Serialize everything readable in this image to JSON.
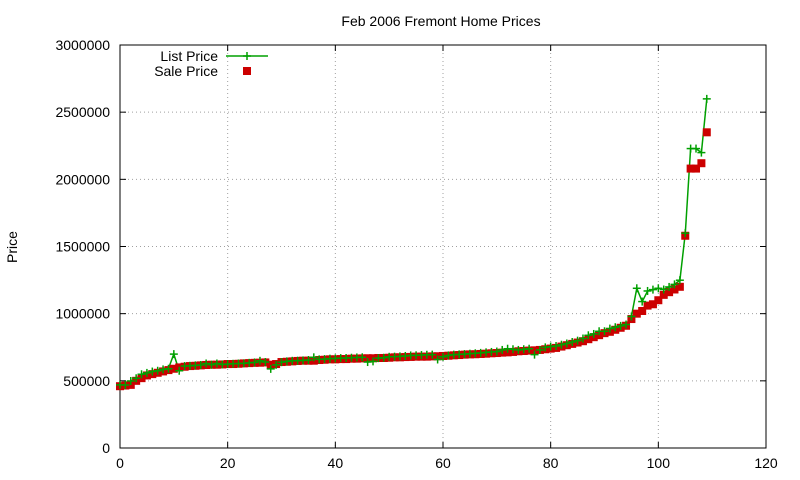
{
  "chart_data": {
    "type": "line",
    "title": "Feb 2006 Fremont Home Prices",
    "xlabel": "",
    "ylabel": "Price",
    "xlim": [
      0,
      120
    ],
    "ylim": [
      0,
      3000000
    ],
    "x_ticks": [
      0,
      20,
      40,
      60,
      80,
      100,
      120
    ],
    "y_ticks": [
      0,
      500000,
      1000000,
      1500000,
      2000000,
      2500000,
      3000000
    ],
    "grid": true,
    "legend_position": "top-left",
    "series": [
      {
        "name": "List Price",
        "style": "line-with-plus-markers",
        "color": "#00a000",
        "x": [
          0,
          1,
          2,
          3,
          4,
          5,
          6,
          7,
          8,
          9,
          10,
          11,
          12,
          13,
          14,
          15,
          16,
          17,
          18,
          19,
          20,
          21,
          22,
          23,
          24,
          25,
          26,
          27,
          28,
          29,
          30,
          31,
          32,
          33,
          34,
          35,
          36,
          37,
          38,
          39,
          40,
          41,
          42,
          43,
          44,
          45,
          46,
          47,
          48,
          49,
          50,
          51,
          52,
          53,
          54,
          55,
          56,
          57,
          58,
          59,
          60,
          61,
          62,
          63,
          64,
          65,
          66,
          67,
          68,
          69,
          70,
          71,
          72,
          73,
          74,
          75,
          76,
          77,
          78,
          79,
          80,
          81,
          82,
          83,
          84,
          85,
          86,
          87,
          88,
          89,
          90,
          91,
          92,
          93,
          94,
          95,
          96,
          97,
          98,
          99,
          100,
          101,
          102,
          103,
          104,
          105,
          106,
          107,
          108,
          109
        ],
        "values": [
          470000,
          469000,
          499000,
          519000,
          549000,
          559000,
          569000,
          575000,
          585000,
          590000,
          699000,
          575000,
          610000,
          612000,
          615000,
          618000,
          629000,
          620000,
          629000,
          622000,
          625000,
          627000,
          629000,
          630000,
          634000,
          637000,
          649000,
          640000,
          589000,
          619000,
          639000,
          645000,
          649000,
          650000,
          652000,
          655000,
          675000,
          660000,
          662000,
          665000,
          667000,
          669000,
          670000,
          672000,
          674000,
          675000,
          640000,
          645000,
          669000,
          672000,
          679000,
          680000,
          682000,
          685000,
          689000,
          690000,
          692000,
          694000,
          695000,
          659000,
          679000,
          689000,
          695000,
          697000,
          699000,
          702000,
          705000,
          708000,
          712000,
          715000,
          718000,
          730000,
          739000,
          735000,
          730000,
          735000,
          739000,
          695000,
          730000,
          749000,
          755000,
          759000,
          769000,
          778000,
          789000,
          799000,
          815000,
          839000,
          849000,
          869000,
          869000,
          889000,
          899000,
          909000,
          919000,
          979000,
          1189000,
          1090000,
          1169000,
          1179000,
          1189000,
          1180000,
          1199000,
          1218000,
          1249000,
          1599000,
          2229000,
          2229000,
          2199000,
          2599000
        ]
      },
      {
        "name": "Sale Price",
        "style": "square-markers",
        "color": "#cc0000",
        "x": [
          0,
          1,
          2,
          3,
          4,
          5,
          6,
          7,
          8,
          9,
          10,
          11,
          12,
          13,
          14,
          15,
          16,
          17,
          18,
          19,
          20,
          21,
          22,
          23,
          24,
          25,
          26,
          27,
          28,
          29,
          30,
          31,
          32,
          33,
          34,
          35,
          36,
          37,
          38,
          39,
          40,
          41,
          42,
          43,
          44,
          45,
          46,
          47,
          48,
          49,
          50,
          51,
          52,
          53,
          54,
          55,
          56,
          57,
          58,
          59,
          60,
          61,
          62,
          63,
          64,
          65,
          66,
          67,
          68,
          69,
          70,
          71,
          72,
          73,
          74,
          75,
          76,
          77,
          78,
          79,
          80,
          81,
          82,
          83,
          84,
          85,
          86,
          87,
          88,
          89,
          90,
          91,
          92,
          93,
          94,
          95,
          96,
          97,
          98,
          99,
          100,
          101,
          102,
          103,
          104,
          105,
          106,
          107,
          108,
          109
        ],
        "values": [
          460000,
          465000,
          470000,
          500000,
          520000,
          540000,
          550000,
          560000,
          570000,
          580000,
          590000,
          600000,
          605000,
          610000,
          612000,
          615000,
          618000,
          620000,
          620000,
          622000,
          625000,
          625000,
          627000,
          630000,
          632000,
          634000,
          635000,
          637000,
          620000,
          625000,
          640000,
          642000,
          645000,
          648000,
          650000,
          650000,
          650000,
          655000,
          657000,
          660000,
          660000,
          662000,
          662000,
          665000,
          665000,
          667000,
          668000,
          668000,
          670000,
          670000,
          672000,
          675000,
          675000,
          677000,
          678000,
          680000,
          680000,
          680000,
          682000,
          683000,
          685000,
          687000,
          690000,
          692000,
          695000,
          697000,
          698000,
          700000,
          702000,
          705000,
          707000,
          710000,
          712000,
          715000,
          720000,
          722000,
          725000,
          727000,
          730000,
          735000,
          740000,
          745000,
          755000,
          765000,
          775000,
          785000,
          795000,
          810000,
          825000,
          840000,
          855000,
          865000,
          880000,
          895000,
          910000,
          960000,
          1000000,
          1020000,
          1060000,
          1070000,
          1100000,
          1140000,
          1160000,
          1180000,
          1200000,
          1580000,
          2080000,
          2080000,
          2120000,
          2350000
        ]
      }
    ]
  }
}
